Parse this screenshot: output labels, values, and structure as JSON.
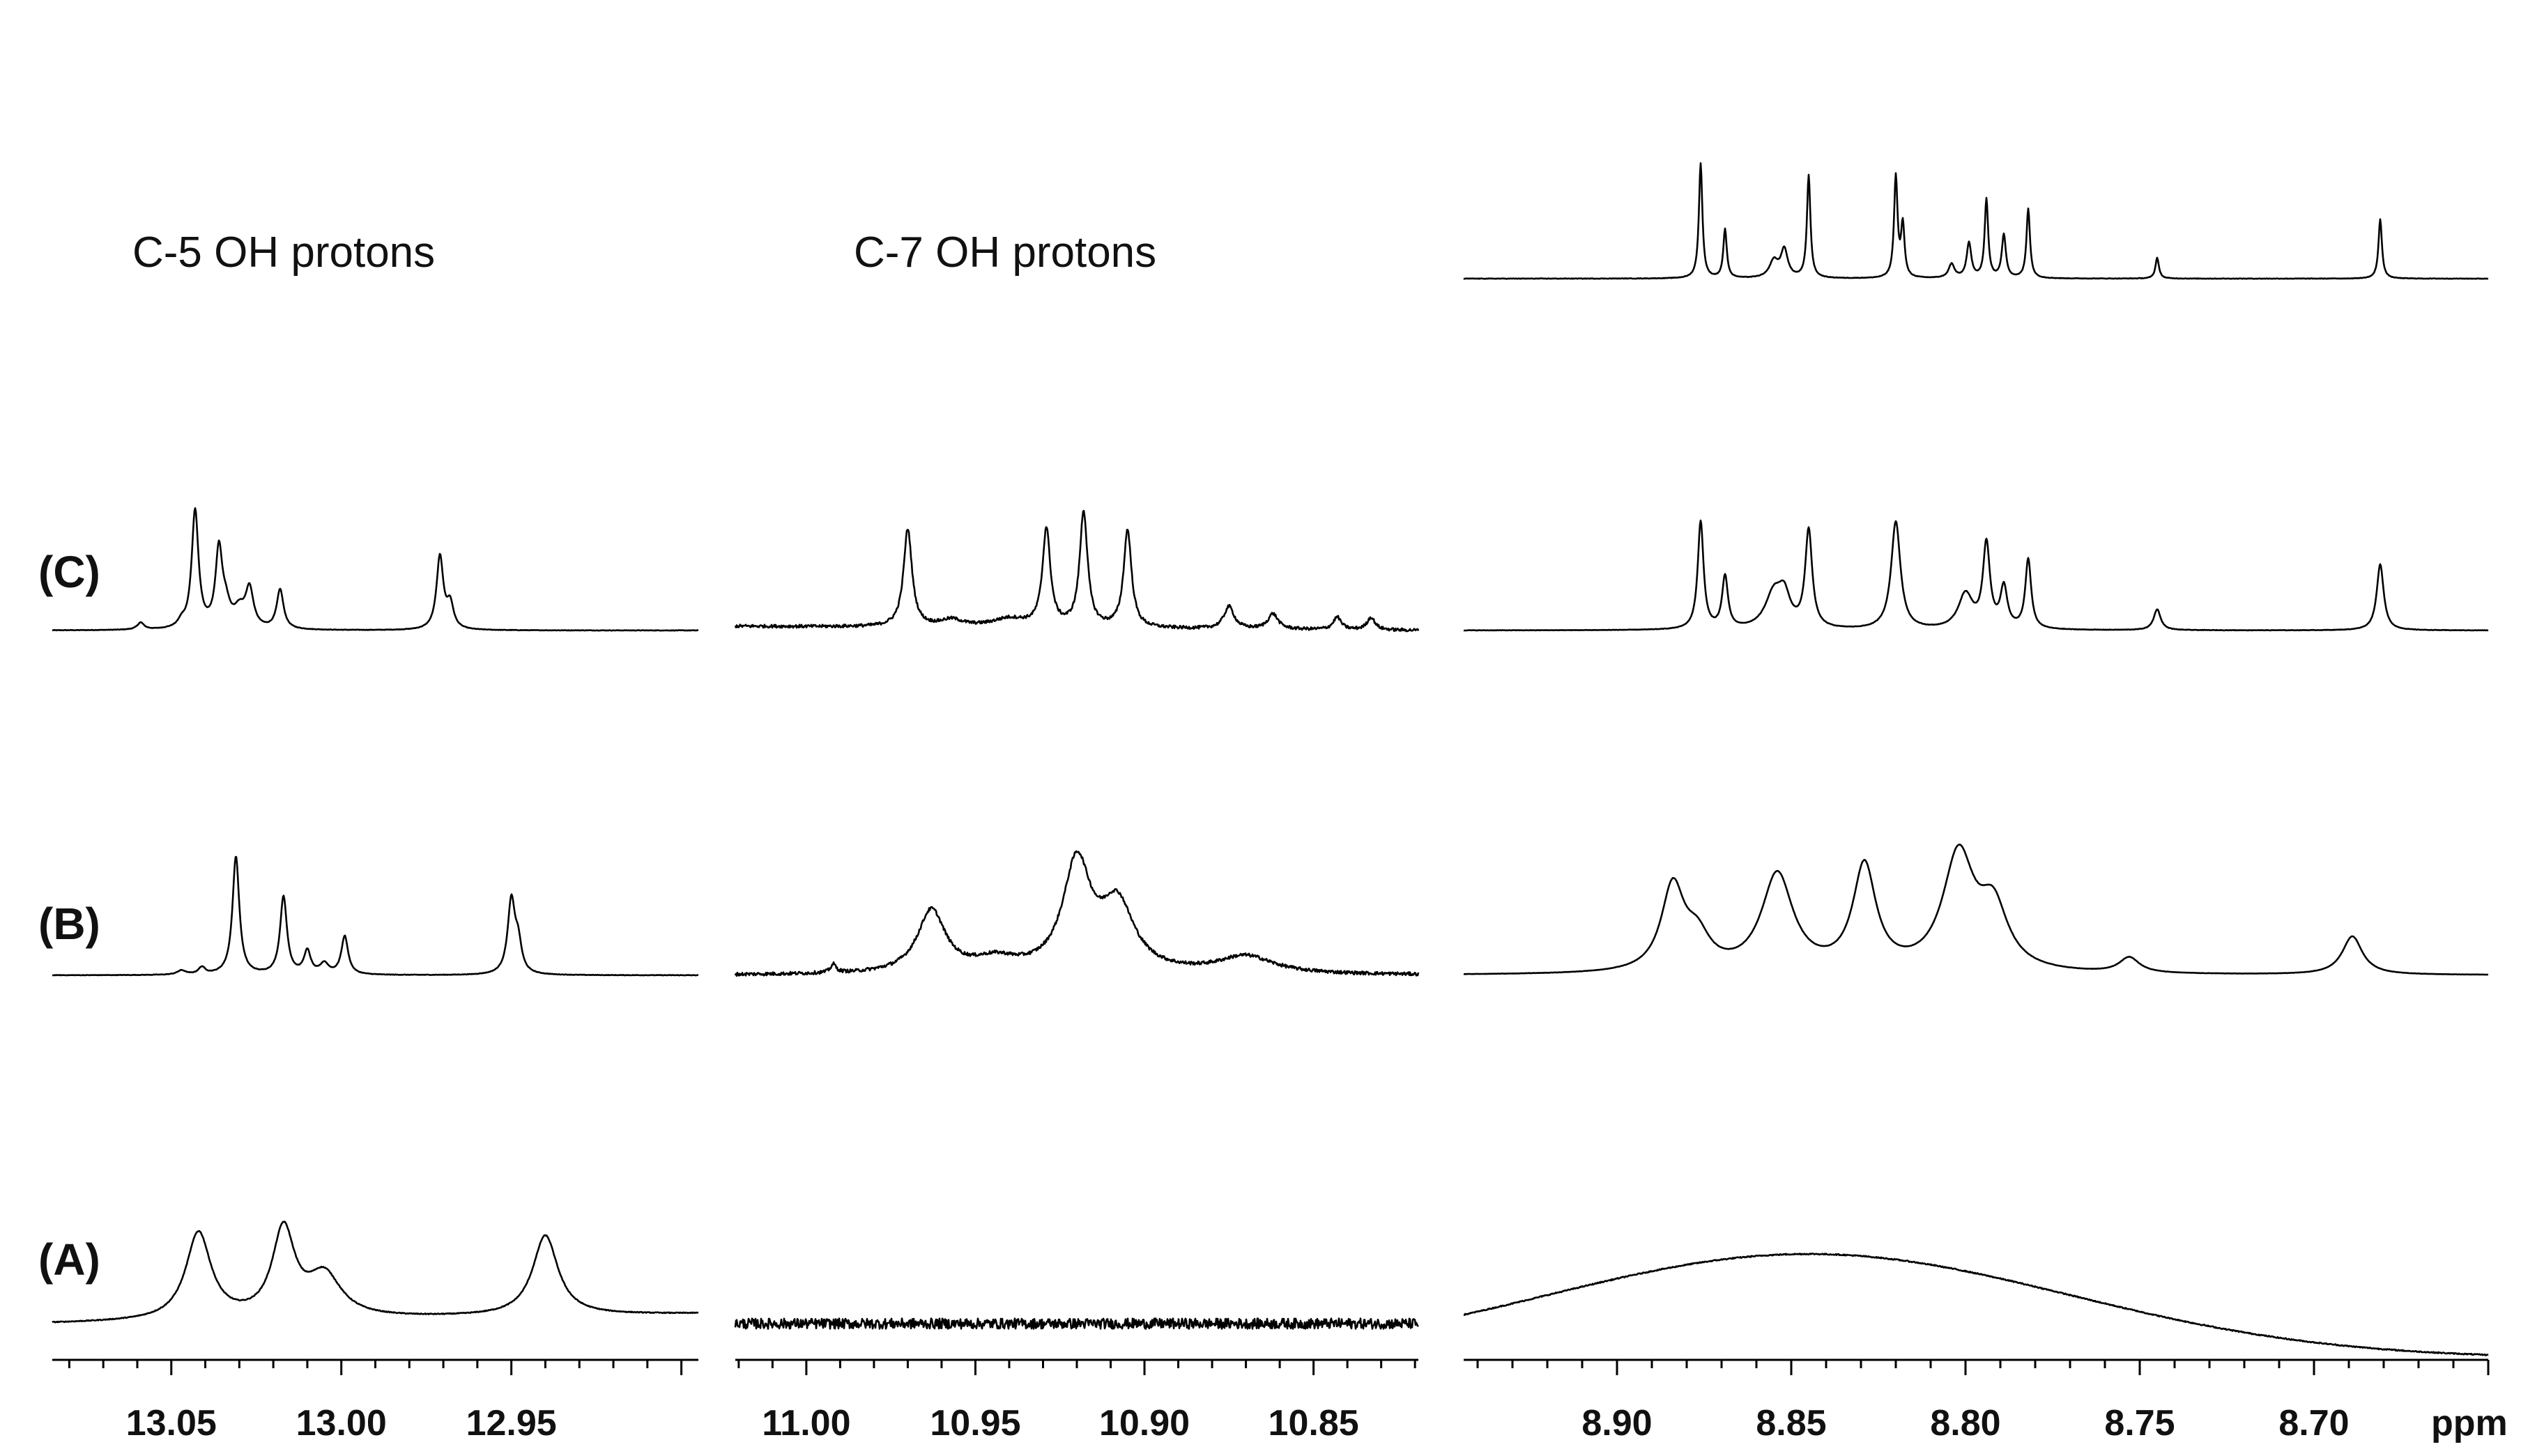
{
  "chart_data": {
    "type": "line",
    "x_unit": "ppm",
    "x_reversed": true,
    "row_labels": [
      "(C)",
      "(B)",
      "(A)"
    ],
    "panels": [
      {
        "id": "c5",
        "title": "C-5 OH protons",
        "xlim": [
          13.085,
          12.895
        ],
        "ticks": [
          "13.05",
          "13.00",
          "12.95"
        ],
        "spectra": [
          {
            "row": "(C)",
            "noise": 0.35,
            "peaks": [
              {
                "x": 13.043,
                "h": 170,
                "w": 0.0012
              },
              {
                "x": 13.036,
                "h": 110,
                "w": 0.0012
              },
              {
                "x": 13.034,
                "h": 28,
                "w": 0.0015
              },
              {
                "x": 13.03,
                "h": 25,
                "w": 0.002
              },
              {
                "x": 13.027,
                "h": 55,
                "w": 0.0014
              },
              {
                "x": 13.018,
                "h": 57,
                "w": 0.0012
              },
              {
                "x": 12.971,
                "h": 105,
                "w": 0.0012
              },
              {
                "x": 12.968,
                "h": 35,
                "w": 0.0012
              },
              {
                "x": 13.059,
                "h": 10,
                "w": 0.0012
              },
              {
                "x": 13.047,
                "h": 8,
                "w": 0.0012
              }
            ]
          },
          {
            "row": "(B)",
            "noise": 0.35,
            "peaks": [
              {
                "x": 13.031,
                "h": 170,
                "w": 0.0012
              },
              {
                "x": 13.017,
                "h": 112,
                "w": 0.0012
              },
              {
                "x": 13.01,
                "h": 33,
                "w": 0.0012
              },
              {
                "x": 13.005,
                "h": 15,
                "w": 0.0015
              },
              {
                "x": 12.999,
                "h": 55,
                "w": 0.0012
              },
              {
                "x": 12.95,
                "h": 105,
                "w": 0.0013
              },
              {
                "x": 12.948,
                "h": 40,
                "w": 0.0012
              },
              {
                "x": 13.047,
                "h": 6,
                "w": 0.0015
              },
              {
                "x": 13.041,
                "h": 10,
                "w": 0.0012
              }
            ]
          },
          {
            "row": "(A)",
            "noise": 0.6,
            "baseline": [
              0,
              14
            ],
            "peaks": [
              {
                "x": 13.042,
                "h": 125,
                "w": 0.0045
              },
              {
                "x": 13.017,
                "h": 125,
                "w": 0.004
              },
              {
                "x": 13.005,
                "h": 60,
                "w": 0.006
              },
              {
                "x": 12.94,
                "h": 115,
                "w": 0.0045
              }
            ]
          }
        ]
      },
      {
        "id": "c7",
        "title": "C-7 OH protons",
        "xlim": [
          11.021,
          10.819
        ],
        "ticks": [
          "11.00",
          "10.95",
          "10.90",
          "10.85"
        ],
        "spectra": [
          {
            "row": "(C)",
            "noise": 2.2,
            "baseline": [
              6,
              0
            ],
            "peaks": [
              {
                "x": 10.97,
                "h": 140,
                "w": 0.0015
              },
              {
                "x": 10.929,
                "h": 140,
                "w": 0.0014
              },
              {
                "x": 10.918,
                "h": 165,
                "w": 0.0014
              },
              {
                "x": 10.905,
                "h": 140,
                "w": 0.0014
              },
              {
                "x": 10.957,
                "h": 10,
                "w": 0.004
              },
              {
                "x": 10.94,
                "h": 12,
                "w": 0.006
              },
              {
                "x": 10.875,
                "h": 32,
                "w": 0.0018
              },
              {
                "x": 10.862,
                "h": 22,
                "w": 0.0018
              },
              {
                "x": 10.843,
                "h": 18,
                "w": 0.0014
              },
              {
                "x": 10.833,
                "h": 18,
                "w": 0.0014
              }
            ]
          },
          {
            "row": "(B)",
            "noise": 2.4,
            "baseline": [
              0,
              0
            ],
            "peaks": [
              {
                "x": 10.963,
                "h": 90,
                "w": 0.005
              },
              {
                "x": 10.92,
                "h": 155,
                "w": 0.005
              },
              {
                "x": 10.908,
                "h": 95,
                "w": 0.006
              },
              {
                "x": 10.87,
                "h": 25,
                "w": 0.01
              },
              {
                "x": 10.944,
                "h": 18,
                "w": 0.008
              },
              {
                "x": 10.992,
                "h": 12,
                "w": 0.001
              }
            ]
          },
          {
            "row": "(A)",
            "noise": 7.5,
            "peaks": []
          }
        ]
      },
      {
        "id": "ar",
        "title": "",
        "xlim": [
          8.944,
          8.65
        ],
        "ticks": [
          "8.90",
          "8.85",
          "8.80",
          "8.75",
          "8.70"
        ],
        "unit_label": "ppm",
        "spectra": [
          {
            "row": "top",
            "noise": 0.35,
            "peaks": [
              {
                "x": 8.876,
                "h": 165,
                "w": 0.0006
              },
              {
                "x": 8.869,
                "h": 70,
                "w": 0.0006
              },
              {
                "x": 8.855,
                "h": 24,
                "w": 0.0015
              },
              {
                "x": 8.852,
                "h": 40,
                "w": 0.0012
              },
              {
                "x": 8.845,
                "h": 147,
                "w": 0.0006
              },
              {
                "x": 8.82,
                "h": 145,
                "w": 0.0006
              },
              {
                "x": 8.818,
                "h": 75,
                "w": 0.0006
              },
              {
                "x": 8.799,
                "h": 50,
                "w": 0.0008
              },
              {
                "x": 8.804,
                "h": 20,
                "w": 0.001
              },
              {
                "x": 8.794,
                "h": 113,
                "w": 0.0006
              },
              {
                "x": 8.789,
                "h": 62,
                "w": 0.0007
              },
              {
                "x": 8.782,
                "h": 100,
                "w": 0.0006
              },
              {
                "x": 8.745,
                "h": 30,
                "w": 0.0006
              },
              {
                "x": 8.681,
                "h": 85,
                "w": 0.0006
              }
            ]
          },
          {
            "row": "(C)",
            "noise": 0.3,
            "peaks": [
              {
                "x": 8.876,
                "h": 155,
                "w": 0.001
              },
              {
                "x": 8.869,
                "h": 75,
                "w": 0.001
              },
              {
                "x": 8.855,
                "h": 50,
                "w": 0.003
              },
              {
                "x": 8.852,
                "h": 40,
                "w": 0.002
              },
              {
                "x": 8.845,
                "h": 140,
                "w": 0.0012
              },
              {
                "x": 8.82,
                "h": 155,
                "w": 0.0016
              },
              {
                "x": 8.8,
                "h": 50,
                "w": 0.0025
              },
              {
                "x": 8.794,
                "h": 120,
                "w": 0.0012
              },
              {
                "x": 8.789,
                "h": 58,
                "w": 0.0012
              },
              {
                "x": 8.782,
                "h": 100,
                "w": 0.001
              },
              {
                "x": 8.745,
                "h": 30,
                "w": 0.0012
              },
              {
                "x": 8.681,
                "h": 95,
                "w": 0.0012
              }
            ]
          },
          {
            "row": "(B)",
            "noise": 0.2,
            "peaks": [
              {
                "x": 8.884,
                "h": 120,
                "w": 0.004
              },
              {
                "x": 8.877,
                "h": 45,
                "w": 0.0045
              },
              {
                "x": 8.854,
                "h": 140,
                "w": 0.0055
              },
              {
                "x": 8.829,
                "h": 150,
                "w": 0.004
              },
              {
                "x": 8.802,
                "h": 165,
                "w": 0.0055
              },
              {
                "x": 8.792,
                "h": 85,
                "w": 0.005
              },
              {
                "x": 8.753,
                "h": 22,
                "w": 0.0035
              },
              {
                "x": 8.689,
                "h": 55,
                "w": 0.0035
              }
            ]
          },
          {
            "row": "(A)",
            "noise": 0.8,
            "broad": {
              "x": 8.845,
              "h": 150,
              "w": 0.075,
              "offset": -50
            },
            "peaks": []
          }
        ]
      }
    ]
  }
}
